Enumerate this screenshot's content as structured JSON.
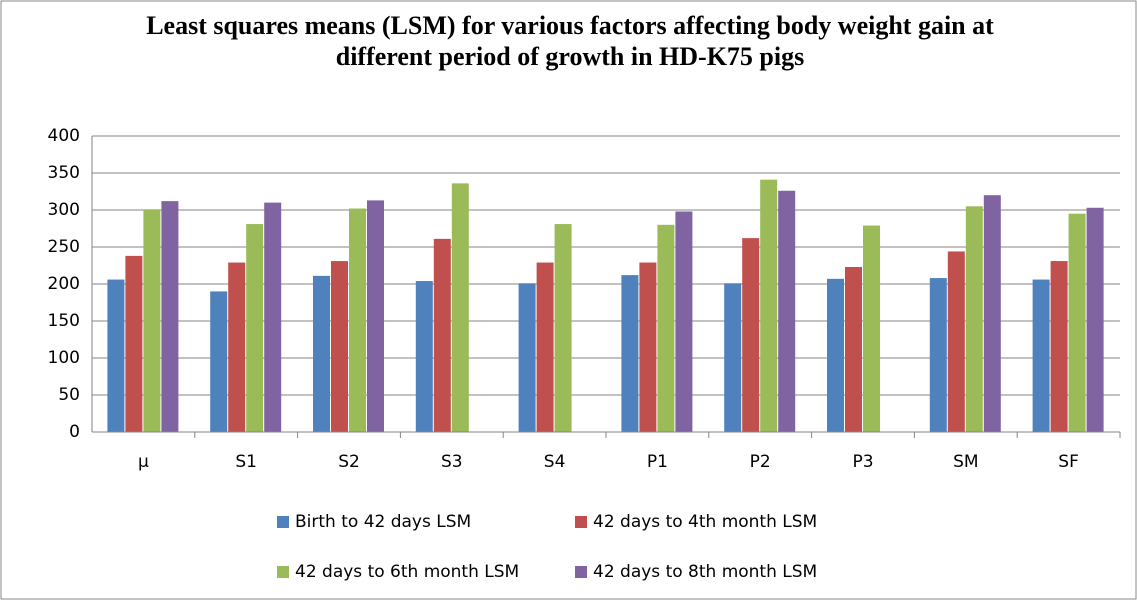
{
  "chart_data": {
    "type": "bar",
    "title": "Least squares means (LSM)  for various factors affecting body weight gain at different period of growth in HD-K75 pigs",
    "categories": [
      "μ",
      "S1",
      "S2",
      "S3",
      "S4",
      "P1",
      "P2",
      "P3",
      "SM",
      "SF"
    ],
    "series": [
      {
        "name": "Birth to 42 days LSM",
        "color": "#4f81bd",
        "values": [
          206,
          190,
          211,
          204,
          201,
          212,
          201,
          207,
          208,
          206
        ]
      },
      {
        "name": "42 days to 4th month LSM",
        "color": "#c0504d",
        "values": [
          238,
          229,
          231,
          261,
          229,
          229,
          262,
          223,
          244,
          231
        ]
      },
      {
        "name": "42 days to 6th month LSM",
        "color": "#9bbb59",
        "values": [
          301,
          281,
          302,
          336,
          281,
          280,
          341,
          279,
          305,
          295
        ]
      },
      {
        "name": "42 days to 8th month LSM",
        "color": "#8064a2",
        "values": [
          312,
          310,
          313,
          null,
          null,
          298,
          326,
          null,
          320,
          303
        ]
      }
    ],
    "ylim": [
      0,
      400
    ],
    "yticks": [
      0,
      50,
      100,
      150,
      200,
      250,
      300,
      350,
      400
    ],
    "grid": true,
    "legend": "bottom"
  }
}
